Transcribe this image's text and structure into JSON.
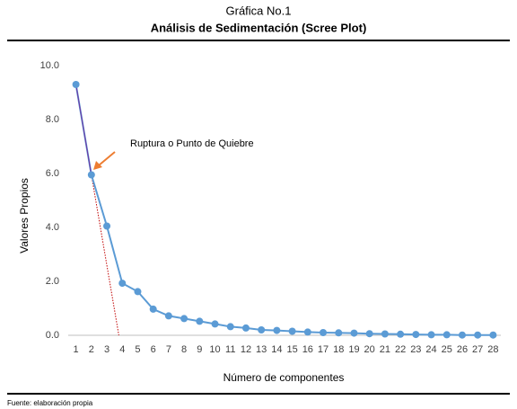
{
  "chart_data": {
    "type": "line",
    "title": "Gráfica No.1",
    "subtitle": "Análisis de Sedimentación (Scree Plot)",
    "xlabel": "Número de componentes",
    "ylabel": "Valores Propios",
    "annotation": "Ruptura o Punto de Quiebre",
    "source": "Fuente: elaboración propia",
    "x": [
      1,
      2,
      3,
      4,
      5,
      6,
      7,
      8,
      9,
      10,
      11,
      12,
      13,
      14,
      15,
      16,
      17,
      18,
      19,
      20,
      21,
      22,
      23,
      24,
      25,
      26,
      27,
      28
    ],
    "series": [
      {
        "color": "#5b9bd5",
        "values": [
          9.3,
          5.95,
          4.05,
          1.93,
          1.62,
          0.97,
          0.72,
          0.62,
          0.52,
          0.42,
          0.32,
          0.27,
          0.2,
          0.18,
          0.15,
          0.12,
          0.1,
          0.09,
          0.08,
          0.06,
          0.05,
          0.04,
          0.03,
          0.02,
          0.02,
          0.01,
          0.01,
          0.01
        ]
      }
    ],
    "xlim": [
      0.5,
      28.5
    ],
    "xticks": [
      1,
      2,
      3,
      4,
      5,
      6,
      7,
      8,
      9,
      10,
      11,
      12,
      13,
      14,
      15,
      16,
      17,
      18,
      19,
      20,
      21,
      22,
      23,
      24,
      25,
      26,
      27,
      28
    ],
    "ylim": [
      0,
      10
    ],
    "yticks": [
      {
        "value": 0,
        "label": "0.0"
      },
      {
        "value": 2,
        "label": "2.0"
      },
      {
        "value": 4,
        "label": "4.0"
      },
      {
        "value": 6,
        "label": "6.0"
      },
      {
        "value": 8,
        "label": "8.0"
      },
      {
        "value": 10,
        "label": "10.0"
      }
    ],
    "grid": false
  }
}
